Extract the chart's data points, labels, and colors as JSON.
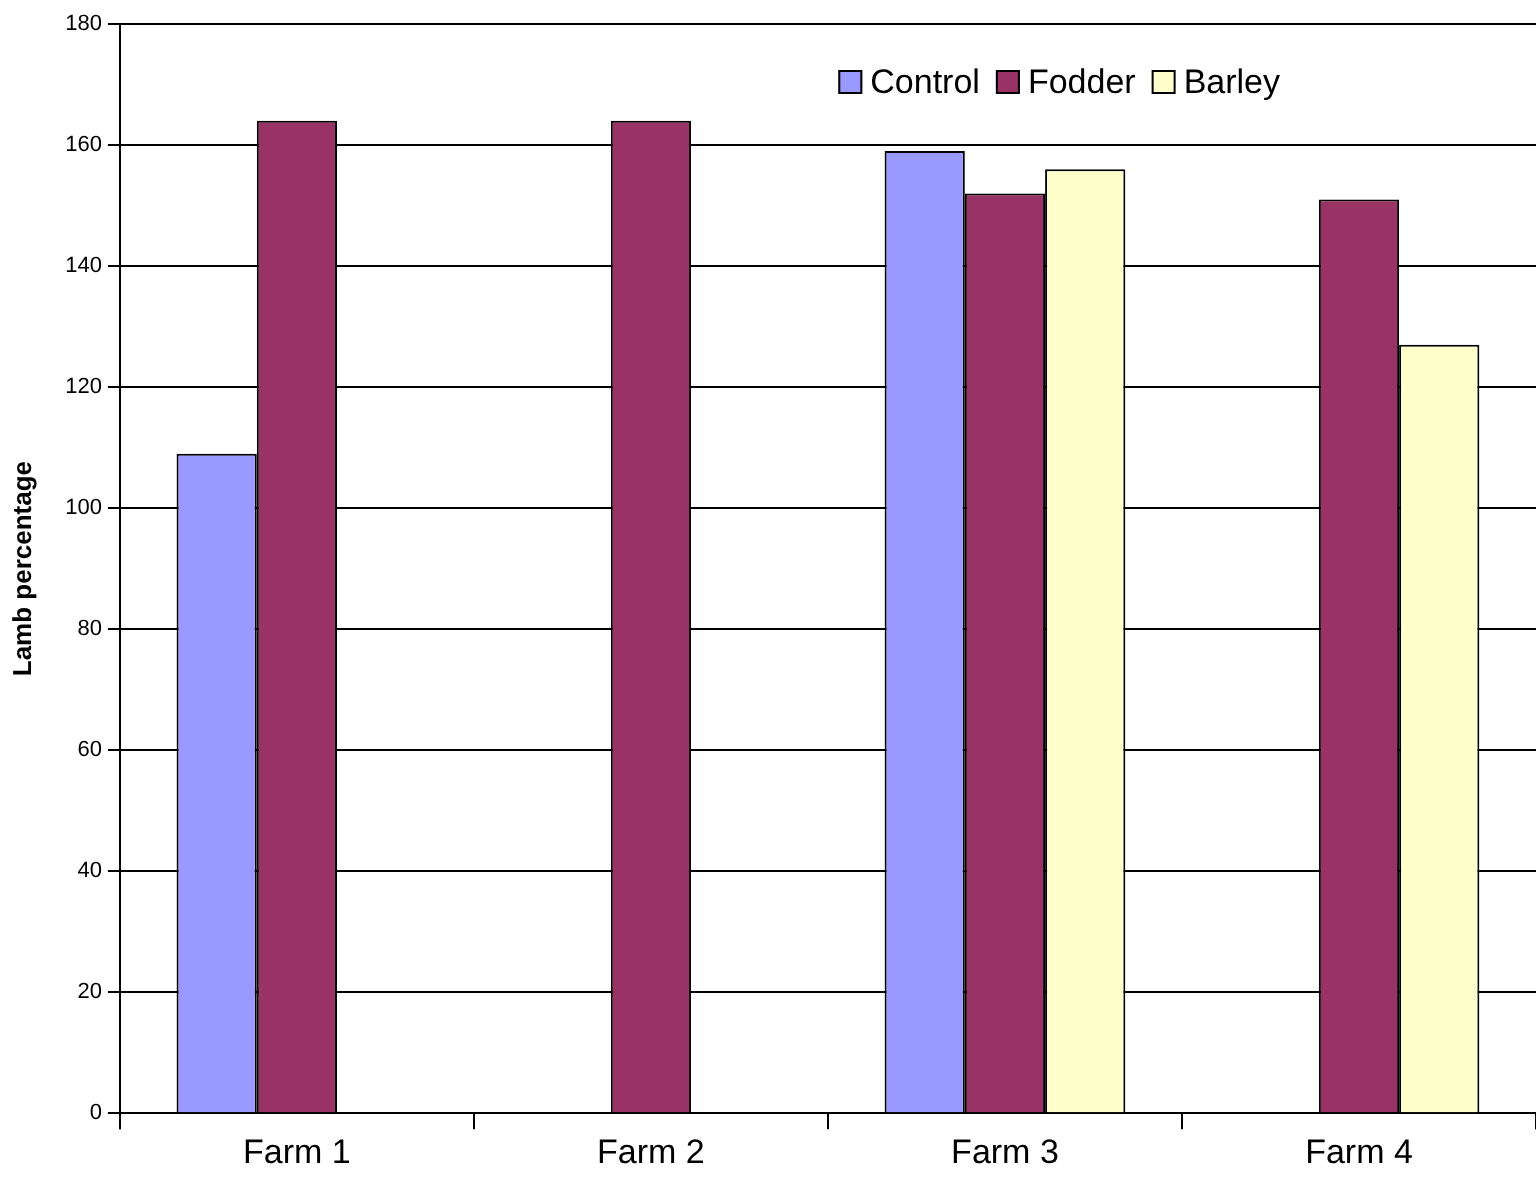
{
  "chart_data": {
    "type": "bar",
    "ylabel": "Lamb percentage",
    "categories": [
      "Farm 1",
      "Farm 2",
      "Farm 3",
      "Farm 4"
    ],
    "series": [
      {
        "name": "Control",
        "color": "#9999ff",
        "values": [
          109,
          null,
          159,
          null
        ]
      },
      {
        "name": "Fodder",
        "color": "#993366",
        "values": [
          164,
          164,
          152,
          151
        ]
      },
      {
        "name": "Barley",
        "color": "#ffffcc",
        "values": [
          null,
          null,
          156,
          127
        ]
      }
    ],
    "ylim": [
      0,
      180
    ],
    "yticks": [
      0,
      20,
      40,
      60,
      80,
      100,
      120,
      140,
      160,
      180
    ],
    "grid": "y",
    "legend": "top right"
  }
}
